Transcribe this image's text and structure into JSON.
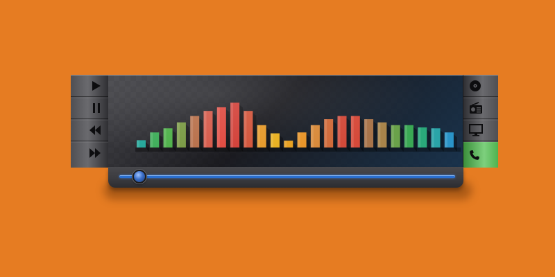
{
  "player": {
    "transport_buttons": [
      {
        "name": "play-button",
        "icon": "play-icon"
      },
      {
        "name": "pause-button",
        "icon": "pause-icon"
      },
      {
        "name": "rewind-button",
        "icon": "rewind-icon"
      },
      {
        "name": "fast-forward-button",
        "icon": "fast-forward-icon"
      }
    ],
    "source_buttons": [
      {
        "name": "disc-source-button",
        "icon": "disc-icon",
        "active": false
      },
      {
        "name": "radio-source-button",
        "icon": "radio-icon",
        "active": false
      },
      {
        "name": "monitor-source-button",
        "icon": "monitor-icon",
        "active": false
      },
      {
        "name": "phone-source-button",
        "icon": "phone-icon",
        "active": true
      }
    ],
    "progress": 0.06,
    "colors": {
      "background": "#e67c22",
      "accent_blue": "#2a6fd0",
      "active_green": "#5fbf5f"
    }
  },
  "equalizer": {
    "bar_levels": [
      0.16,
      0.33,
      0.42,
      0.55,
      0.69,
      0.8,
      0.88,
      0.98,
      0.8,
      0.49,
      0.31,
      0.15,
      0.33,
      0.49,
      0.62,
      0.69,
      0.69,
      0.62,
      0.55,
      0.49,
      0.49,
      0.44,
      0.42,
      0.33
    ],
    "bar_colors": [
      "#25a89a",
      "#3fae5a",
      "#4fb24a",
      "#7a9a44",
      "#b8704a",
      "#d65a4a",
      "#e04a40",
      "#d24038",
      "#d2543a",
      "#e69a2a",
      "#e8b020",
      "#e8a020",
      "#e89428",
      "#d88a3a",
      "#d06a3a",
      "#d24a3a",
      "#d64a3a",
      "#a8744a",
      "#a8844a",
      "#6aa24a",
      "#3aa854",
      "#2aa87a",
      "#2aa4a8",
      "#2a94c8"
    ]
  }
}
